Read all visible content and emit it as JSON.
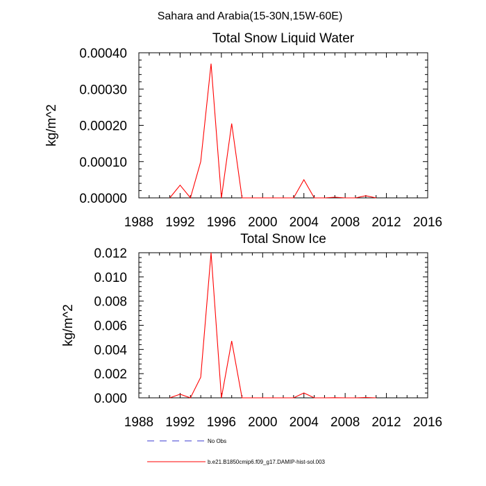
{
  "figure": {
    "title": "Sahara and Arabia(15-30N,15W-60E)"
  },
  "chart_data": [
    {
      "type": "line",
      "title": "Total Snow Liquid Water",
      "xlabel": "",
      "ylabel": "kg/m^2",
      "xlim": [
        1988,
        2016
      ],
      "ylim": [
        0,
        0.0004
      ],
      "xticks": [
        1988,
        1992,
        1996,
        2000,
        2004,
        2008,
        2012,
        2016
      ],
      "xtick_labels": [
        "1988",
        "1992",
        "1996",
        "2000",
        "2004",
        "2008",
        "2012",
        "2016"
      ],
      "yticks": [
        0,
        0.0001,
        0.0002,
        0.0003,
        0.0004
      ],
      "ytick_labels": [
        "0.00000",
        "0.00010",
        "0.00020",
        "0.00030",
        "0.00040"
      ],
      "grid": false,
      "series": [
        {
          "name": "b.e21.B1850cmip6.f09_g17.DAMIP-hist-sol.003",
          "color": "#ff0000",
          "x": [
            1991,
            1992,
            1993,
            1994,
            1995,
            1996,
            1997,
            1998,
            1999,
            2000,
            2001,
            2002,
            2003,
            2004,
            2005,
            2006,
            2007,
            2008,
            2009,
            2010,
            2011
          ],
          "values": [
            0,
            3.5e-05,
            0,
            0.0001,
            0.00037,
            0,
            0.000205,
            0,
            0,
            0,
            0,
            0,
            0,
            5e-05,
            0,
            0,
            2e-06,
            0,
            0,
            6e-06,
            0
          ]
        }
      ]
    },
    {
      "type": "line",
      "title": "Total Snow Ice",
      "xlabel": "",
      "ylabel": "kg/m^2",
      "xlim": [
        1988,
        2016
      ],
      "ylim": [
        0,
        0.012
      ],
      "xticks": [
        1988,
        1992,
        1996,
        2000,
        2004,
        2008,
        2012,
        2016
      ],
      "xtick_labels": [
        "1988",
        "1992",
        "1996",
        "2000",
        "2004",
        "2008",
        "2012",
        "2016"
      ],
      "yticks": [
        0,
        0.002,
        0.004,
        0.006,
        0.008,
        0.01,
        0.012
      ],
      "ytick_labels": [
        "0.000",
        "0.002",
        "0.004",
        "0.006",
        "0.008",
        "0.010",
        "0.012"
      ],
      "grid": false,
      "series": [
        {
          "name": "b.e21.B1850cmip6.f09_g17.DAMIP-hist-sol.003",
          "color": "#ff0000",
          "x": [
            1991,
            1992,
            1993,
            1994,
            1995,
            1996,
            1997,
            1998,
            1999,
            2000,
            2001,
            2002,
            2003,
            2004,
            2005,
            2006,
            2007,
            2008,
            2009,
            2010,
            2011
          ],
          "values": [
            0,
            0.0003,
            0,
            0.0017,
            0.012,
            0,
            0.0047,
            0,
            0,
            0,
            0,
            0,
            0,
            0.0004,
            0,
            0,
            1e-05,
            0,
            0,
            3e-05,
            0
          ]
        }
      ]
    }
  ],
  "legend": {
    "placement": "bottom",
    "items": [
      {
        "label": "No Obs",
        "color": "#3a3ad0",
        "style": "dashed"
      },
      {
        "label": "b.e21.B1850cmip6.f09_g17.DAMIP-hist-sol.003",
        "color": "#ff0000",
        "style": "solid"
      }
    ]
  }
}
